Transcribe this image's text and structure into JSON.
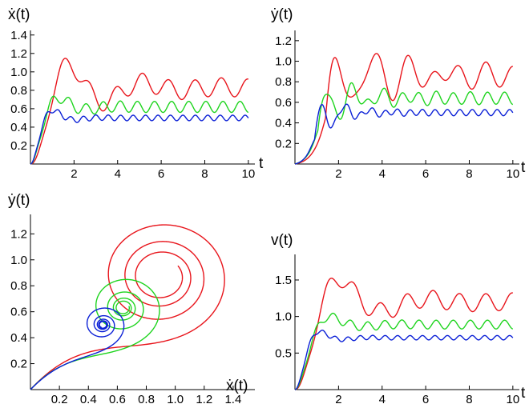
{
  "colors": {
    "red": "#e8141b",
    "green": "#1ed41e",
    "blue": "#0a1fd6"
  },
  "chart_data": [
    {
      "type": "line",
      "title": "",
      "xlabel": "t",
      "ylabel": "ẋ(t)",
      "xlim": [
        0,
        10.3
      ],
      "ylim": [
        0,
        1.45
      ],
      "xticks": [
        2,
        4,
        6,
        8,
        10
      ],
      "yticks": [
        0.2,
        0.4,
        0.6,
        0.8,
        1.0,
        1.2,
        1.4
      ],
      "xtick_labels": [
        "2",
        "4",
        "6",
        "8",
        "10"
      ],
      "ytick_labels": [
        "0.2",
        "0.4",
        "0.6",
        "0.8",
        "1.0",
        "1.2",
        "1.4"
      ],
      "grid": false,
      "series": [
        {
          "color": "red",
          "model": {
            "kind": "damped",
            "A": 0.825,
            "gain": 1.5,
            "gamma": 0.5,
            "omega": 1.78,
            "amp_ss": 0.1,
            "omega_ss": 5.2,
            "phase_ss": 0.0
          }
        },
        {
          "color": "green",
          "model": {
            "kind": "damped",
            "A": 0.62,
            "gain": 2.5,
            "gamma": 1.2,
            "omega": 2.25,
            "amp_ss": 0.06,
            "omega_ss": 8.0,
            "phase_ss": 0.0
          }
        },
        {
          "color": "blue",
          "model": {
            "kind": "damped",
            "A": 0.5,
            "gain": 3.3,
            "gamma": 1.5,
            "omega": 2.8,
            "amp_ss": 0.03,
            "omega_ss": 11.0,
            "phase_ss": 0.0
          }
        }
      ]
    },
    {
      "type": "line",
      "title": "",
      "xlabel": "t",
      "ylabel": "ẏ(t)",
      "xlim": [
        0,
        10.3
      ],
      "ylim": [
        0,
        1.3
      ],
      "xticks": [
        2,
        4,
        6,
        8,
        10
      ],
      "yticks": [
        0.2,
        0.4,
        0.6,
        0.8,
        1.0,
        1.2
      ],
      "xtick_labels": [
        "2",
        "4",
        "6",
        "8",
        "10"
      ],
      "ytick_labels": [
        "0.2",
        "0.4",
        "0.6",
        "0.8",
        "1.0",
        "1.2"
      ],
      "grid": false,
      "series": [
        {
          "color": "red",
          "model": {
            "kind": "sigmoid",
            "A": 0.86,
            "k": 3.0,
            "t0": 1.4,
            "amp": 0.43,
            "decay": 0.35,
            "omega": 3.6,
            "t_osc": 1.4,
            "amp_ss": 0.1,
            "omega_ss": 5.2
          }
        },
        {
          "color": "green",
          "model": {
            "kind": "sigmoid",
            "A": 0.64,
            "k": 3.5,
            "t0": 1.05,
            "amp": 0.27,
            "decay": 0.6,
            "omega": 4.8,
            "t_osc": 1.05,
            "amp_ss": 0.06,
            "omega_ss": 8.0
          }
        },
        {
          "color": "blue",
          "model": {
            "kind": "sigmoid",
            "A": 0.5,
            "k": 4.0,
            "t0": 0.9,
            "amp": 0.24,
            "decay": 0.9,
            "omega": 5.6,
            "t_osc": 0.9,
            "amp_ss": 0.03,
            "omega_ss": 11.0
          }
        }
      ]
    },
    {
      "type": "line",
      "title": "",
      "xlabel": "ẋ(t)",
      "ylabel": "ẏ(t)",
      "xlim": [
        0,
        1.55
      ],
      "ylim": [
        0,
        1.35
      ],
      "xticks": [
        0.2,
        0.4,
        0.6,
        0.8,
        1.0,
        1.2,
        1.4
      ],
      "yticks": [
        0.2,
        0.4,
        0.6,
        0.8,
        1.0,
        1.2
      ],
      "xtick_labels": [
        "0.2",
        "0.4",
        "0.6",
        "0.8",
        "1.0",
        "1.2",
        "1.4"
      ],
      "ytick_labels": [
        "0.2",
        "0.4",
        "0.6",
        "0.8",
        "1.0",
        "1.2"
      ],
      "grid": false,
      "series": [
        {
          "color": "red",
          "model": {
            "kind": "spiral",
            "cx": 0.9,
            "cy": 0.87,
            "r0": 0.52,
            "decay": 0.16,
            "r_ss": 0.05,
            "omega": 2.2,
            "phase": 3.75
          }
        },
        {
          "color": "green",
          "model": {
            "kind": "spiral",
            "cx": 0.64,
            "cy": 0.63,
            "r0": 0.33,
            "decay": 0.32,
            "r_ss": 0.03,
            "omega": 2.8,
            "phase": 3.75
          }
        },
        {
          "color": "blue",
          "model": {
            "kind": "spiral",
            "cx": 0.5,
            "cy": 0.5,
            "r0": 0.2,
            "decay": 0.4,
            "r_ss": 0.02,
            "omega": 3.2,
            "phase": 3.75
          }
        }
      ]
    },
    {
      "type": "line",
      "title": "",
      "xlabel": "t",
      "ylabel": "v(t)",
      "xlim": [
        0,
        10.3
      ],
      "ylim": [
        0,
        1.85
      ],
      "xticks": [
        2,
        4,
        6,
        8,
        10
      ],
      "yticks": [
        0.5,
        1.0,
        1.5
      ],
      "xtick_labels": [
        "2",
        "4",
        "6",
        "8",
        "10"
      ],
      "ytick_labels": [
        "0.5",
        "1.0",
        "1.5"
      ],
      "grid": false,
      "series": [
        {
          "color": "red",
          "model": {
            "kind": "damped",
            "A": 1.2,
            "gain": 1.5,
            "gamma": 0.55,
            "omega": 1.5,
            "amp_ss": 0.12,
            "omega_ss": 5.2,
            "phase_ss": 0.0
          }
        },
        {
          "color": "green",
          "model": {
            "kind": "damped",
            "A": 0.89,
            "gain": 2.0,
            "gamma": 1.1,
            "omega": 1.8,
            "amp_ss": 0.06,
            "omega_ss": 8.0,
            "phase_ss": 0.0
          }
        },
        {
          "color": "blue",
          "model": {
            "kind": "damped",
            "A": 0.71,
            "gain": 2.6,
            "gamma": 1.5,
            "omega": 2.6,
            "amp_ss": 0.03,
            "omega_ss": 11.0,
            "phase_ss": 0.0
          }
        }
      ]
    }
  ]
}
